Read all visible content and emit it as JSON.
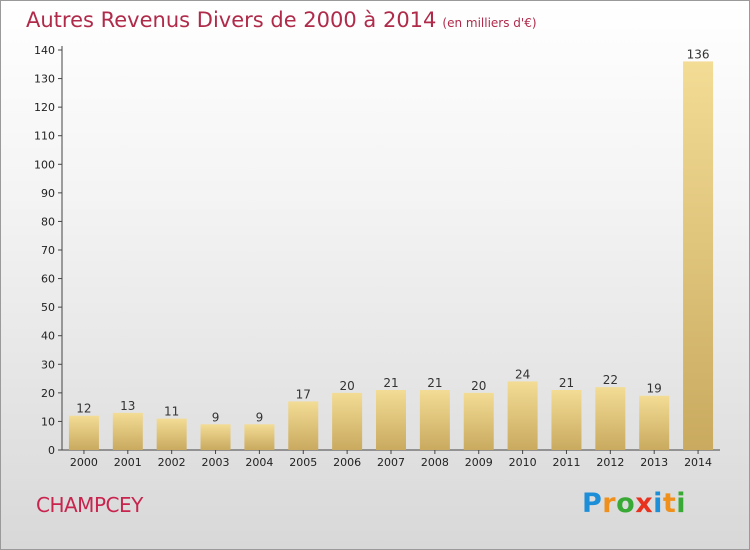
{
  "header": {
    "title": "Autres Revenus Divers de 2000 à 2014",
    "unit": "(en milliers d'€)"
  },
  "footer": {
    "place": "CHAMPCEY",
    "logo": [
      "P",
      "r",
      "o",
      "x",
      "i",
      "t",
      "i"
    ]
  },
  "colors": {
    "logo": [
      "#1d8fd8",
      "#f0901c",
      "#39a935",
      "#e8321e",
      "#1d8fd8",
      "#f0901c",
      "#39a935"
    ],
    "bar_light": "#f3dc95",
    "bar_dark": "#c9aa5f"
  },
  "chart_data": {
    "type": "bar",
    "title": "Autres Revenus Divers de 2000 à 2014",
    "ylabel": "",
    "xlabel": "",
    "categories": [
      "2000",
      "2001",
      "2002",
      "2003",
      "2004",
      "2005",
      "2006",
      "2007",
      "2008",
      "2009",
      "2010",
      "2011",
      "2012",
      "2013",
      "2014"
    ],
    "values": [
      12,
      13,
      11,
      9,
      9,
      17,
      20,
      21,
      21,
      20,
      24,
      21,
      22,
      19,
      136
    ],
    "ylim": [
      0,
      140
    ],
    "yticks": [
      0,
      10,
      20,
      30,
      40,
      50,
      60,
      70,
      80,
      90,
      100,
      110,
      120,
      130,
      140
    ],
    "grid": false,
    "legend": "none"
  }
}
